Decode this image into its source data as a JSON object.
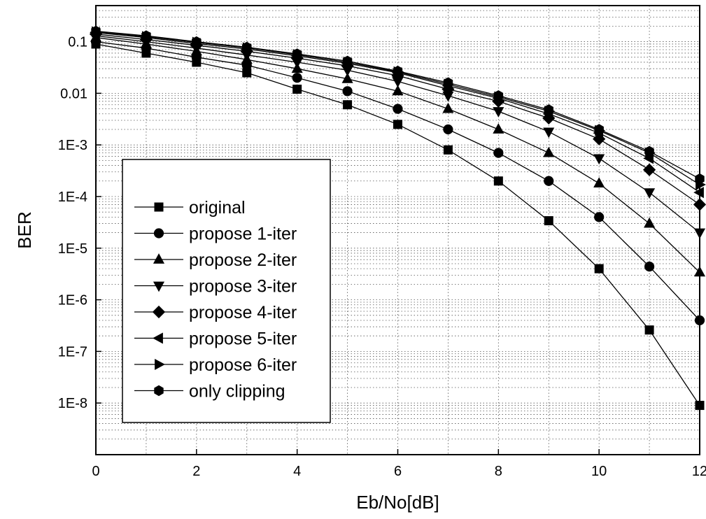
{
  "chart_data": {
    "type": "line",
    "xlabel": "Eb/No[dB]",
    "ylabel": "BER",
    "xlim": [
      0,
      12
    ],
    "ylim": [
      1e-09,
      0.5
    ],
    "yscale": "log",
    "grid": true,
    "legend_position": "lower-left",
    "x_ticks": [
      0,
      2,
      4,
      6,
      8,
      10,
      12
    ],
    "x_tick_labels": [
      "0",
      "2",
      "4",
      "6",
      "8",
      "10",
      "12"
    ],
    "y_ticks": [
      0.1,
      0.01,
      0.001,
      0.0001,
      1e-05,
      1e-06,
      1e-07,
      1e-08
    ],
    "y_tick_labels": [
      "0.1",
      "0.01",
      "1E-3",
      "1E-4",
      "1E-5",
      "1E-6",
      "1E-7",
      "1E-8"
    ],
    "x": [
      0,
      1,
      2,
      3,
      4,
      5,
      6,
      7,
      8,
      9,
      10,
      11,
      12
    ],
    "series": [
      {
        "name": "original",
        "marker": "square",
        "values": [
          0.09,
          0.06,
          0.04,
          0.025,
          0.012,
          0.006,
          0.0025,
          0.0008,
          0.0002,
          3.4e-05,
          4e-06,
          2.6e-07,
          9e-09
        ]
      },
      {
        "name": "propose 1-iter",
        "marker": "circle",
        "values": [
          0.1,
          0.075,
          0.05,
          0.035,
          0.02,
          0.011,
          0.005,
          0.002,
          0.0007,
          0.0002,
          4e-05,
          4.4e-06,
          4e-07
        ]
      },
      {
        "name": "propose 2-iter",
        "marker": "triangle-up",
        "values": [
          0.12,
          0.09,
          0.065,
          0.045,
          0.03,
          0.019,
          0.011,
          0.005,
          0.002,
          0.0007,
          0.00018,
          3e-05,
          3.4e-06
        ]
      },
      {
        "name": "propose 3-iter",
        "marker": "triangle-down",
        "values": [
          0.13,
          0.1,
          0.075,
          0.055,
          0.04,
          0.028,
          0.017,
          0.009,
          0.0045,
          0.0018,
          0.00055,
          0.00012,
          2e-05
        ]
      },
      {
        "name": "propose 4-iter",
        "marker": "diamond",
        "values": [
          0.14,
          0.11,
          0.085,
          0.065,
          0.048,
          0.034,
          0.022,
          0.012,
          0.007,
          0.0033,
          0.0013,
          0.00033,
          7e-05
        ]
      },
      {
        "name": "propose 5-iter",
        "marker": "triangle-left",
        "values": [
          0.15,
          0.12,
          0.092,
          0.072,
          0.053,
          0.038,
          0.025,
          0.014,
          0.008,
          0.004,
          0.0017,
          0.00055,
          0.00012
        ]
      },
      {
        "name": "propose 6-iter",
        "marker": "triangle-right",
        "values": [
          0.155,
          0.125,
          0.097,
          0.076,
          0.056,
          0.04,
          0.026,
          0.015,
          0.0085,
          0.0045,
          0.0019,
          0.0007,
          0.00017
        ]
      },
      {
        "name": "only clipping",
        "marker": "hexagon",
        "values": [
          0.16,
          0.13,
          0.1,
          0.078,
          0.058,
          0.042,
          0.027,
          0.016,
          0.009,
          0.0048,
          0.002,
          0.00075,
          0.00022
        ]
      }
    ]
  }
}
